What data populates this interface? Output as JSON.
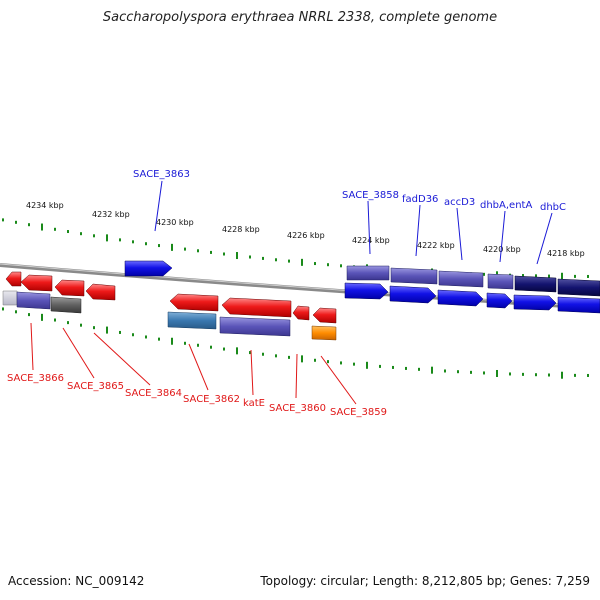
{
  "title": "Saccharopolyspora erythraea NRRL 2338, complete genome",
  "footer": {
    "accession": "Accession: NC_009142",
    "topology": "Topology: circular; Length: 8,212,805 bp; Genes: 7,259"
  },
  "kbp_labels": [
    "4234 kbp",
    "4232 kbp",
    "4230 kbp",
    "4228 kbp",
    "4226 kbp",
    "4224 kbp",
    "4222 kbp",
    "4220 kbp",
    "4218 kbp"
  ],
  "forward_labels": [
    "SACE_3863",
    "SACE_3858",
    "fadD36",
    "accD3",
    "dhbA,entA",
    "dhbC"
  ],
  "reverse_labels": [
    "SACE_3866",
    "SACE_3865",
    "SACE_3864",
    "SACE_3862",
    "katE",
    "SACE_3860",
    "SACE_3859"
  ],
  "colors": {
    "forward_gene": "#0a0adc",
    "reverse_gene": "#e01818",
    "tick": "#1a8a1a",
    "backbone": "#888888"
  }
}
